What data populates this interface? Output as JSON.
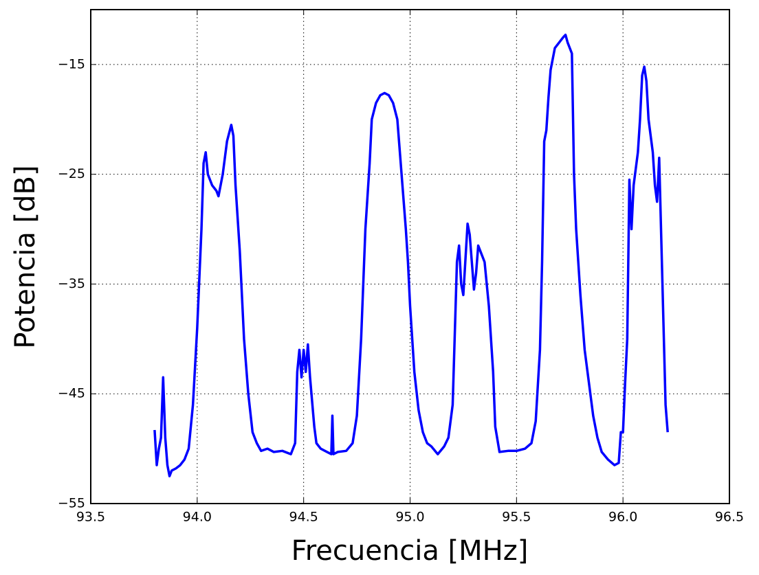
{
  "chart_data": {
    "type": "line",
    "xlabel": "Frecuencia [MHz]",
    "ylabel": "Potencia [dB]",
    "x": [
      93.8,
      93.81,
      93.82,
      93.83,
      93.84,
      93.85,
      93.86,
      93.87,
      93.88,
      93.9,
      93.92,
      93.94,
      93.96,
      93.98,
      94.0,
      94.02,
      94.03,
      94.04,
      94.05,
      94.07,
      94.09,
      94.1,
      94.12,
      94.14,
      94.16,
      94.17,
      94.18,
      94.2,
      94.22,
      94.24,
      94.26,
      94.28,
      94.3,
      94.33,
      94.36,
      94.4,
      94.44,
      94.46,
      94.47,
      94.48,
      94.49,
      94.5,
      94.51,
      94.52,
      94.53,
      94.55,
      94.56,
      94.58,
      94.61,
      94.63,
      94.635,
      94.64,
      94.66,
      94.7,
      94.73,
      94.75,
      94.77,
      94.79,
      94.81,
      94.82,
      94.84,
      94.86,
      94.88,
      94.9,
      94.92,
      94.94,
      94.96,
      94.98,
      94.99,
      95.0,
      95.02,
      95.04,
      95.06,
      95.08,
      95.1,
      95.13,
      95.16,
      95.18,
      95.2,
      95.22,
      95.23,
      95.24,
      95.25,
      95.27,
      95.28,
      95.3,
      95.31,
      95.32,
      95.34,
      95.35,
      95.37,
      95.39,
      95.4,
      95.42,
      95.46,
      95.5,
      95.54,
      95.57,
      95.59,
      95.61,
      95.62,
      95.63,
      95.64,
      95.65,
      95.66,
      95.68,
      95.7,
      95.72,
      95.73,
      95.74,
      95.75,
      95.76,
      95.77,
      95.78,
      95.8,
      95.82,
      95.84,
      95.86,
      95.88,
      95.9,
      95.93,
      95.96,
      95.98,
      95.99,
      96.0,
      96.01,
      96.02,
      96.03,
      96.04,
      96.05,
      96.07,
      96.08,
      96.09,
      96.1,
      96.11,
      96.12,
      96.14,
      96.15,
      96.16,
      96.17,
      96.18,
      96.19,
      96.2,
      96.21
    ],
    "values": [
      -48.3,
      -51.5,
      -50,
      -49,
      -43.5,
      -49,
      -51.5,
      -52.5,
      -52,
      -51.8,
      -51.5,
      -51,
      -50,
      -46,
      -39,
      -30,
      -24,
      -23,
      -25,
      -26,
      -26.5,
      -27,
      -25,
      -22,
      -20.5,
      -21.5,
      -26,
      -32,
      -40,
      -45,
      -48.5,
      -49.5,
      -50.2,
      -50,
      -50.3,
      -50.2,
      -50.5,
      -49.5,
      -43,
      -41,
      -43.5,
      -41,
      -43,
      -40.5,
      -43.5,
      -48,
      -49.5,
      -50,
      -50.3,
      -50.5,
      -47,
      -50.5,
      -50.3,
      -50.2,
      -49.5,
      -47,
      -40,
      -30,
      -24,
      -20,
      -18.5,
      -17.8,
      -17.6,
      -17.8,
      -18.5,
      -20,
      -25,
      -30,
      -33,
      -37,
      -43,
      -46.5,
      -48.5,
      -49.5,
      -49.8,
      -50.5,
      -49.8,
      -49,
      -46,
      -33,
      -31.5,
      -35,
      -36,
      -29.5,
      -30.5,
      -35.5,
      -34,
      -31.5,
      -32.5,
      -33,
      -37,
      -43,
      -48,
      -50.3,
      -50.2,
      -50.2,
      -50,
      -49.5,
      -47.5,
      -41,
      -33,
      -22,
      -21,
      -18,
      -15.5,
      -13.5,
      -13,
      -12.5,
      -12.3,
      -13,
      -13.5,
      -14,
      -25,
      -30,
      -36,
      -41,
      -44,
      -47,
      -49,
      -50.3,
      -51,
      -51.5,
      -51.3,
      -48.5,
      -48.5,
      -44,
      -40,
      -25.5,
      -30,
      -26,
      -23,
      -20,
      -16,
      -15.2,
      -16.5,
      -20,
      -23,
      -26,
      -27.5,
      -23.5,
      -31,
      -38.5,
      -46,
      -48.5
    ],
    "color": "#0000ff",
    "xlim": [
      93.5,
      96.5
    ],
    "xticks": [
      93.5,
      {
        "value": 94,
        "label": "94.0"
      },
      94.5,
      {
        "value": 95,
        "label": "95.0"
      },
      95.5,
      {
        "value": 96,
        "label": "96.0"
      },
      96.5
    ],
    "ylim": [
      -55,
      -10
    ],
    "yticks": [
      {
        "value": -55,
        "label": "−55"
      },
      {
        "value": -45,
        "label": "−45"
      },
      {
        "value": -35,
        "label": "−35"
      },
      {
        "value": -25,
        "label": "−25"
      },
      {
        "value": -15,
        "label": "−15"
      }
    ],
    "grid": true
  }
}
